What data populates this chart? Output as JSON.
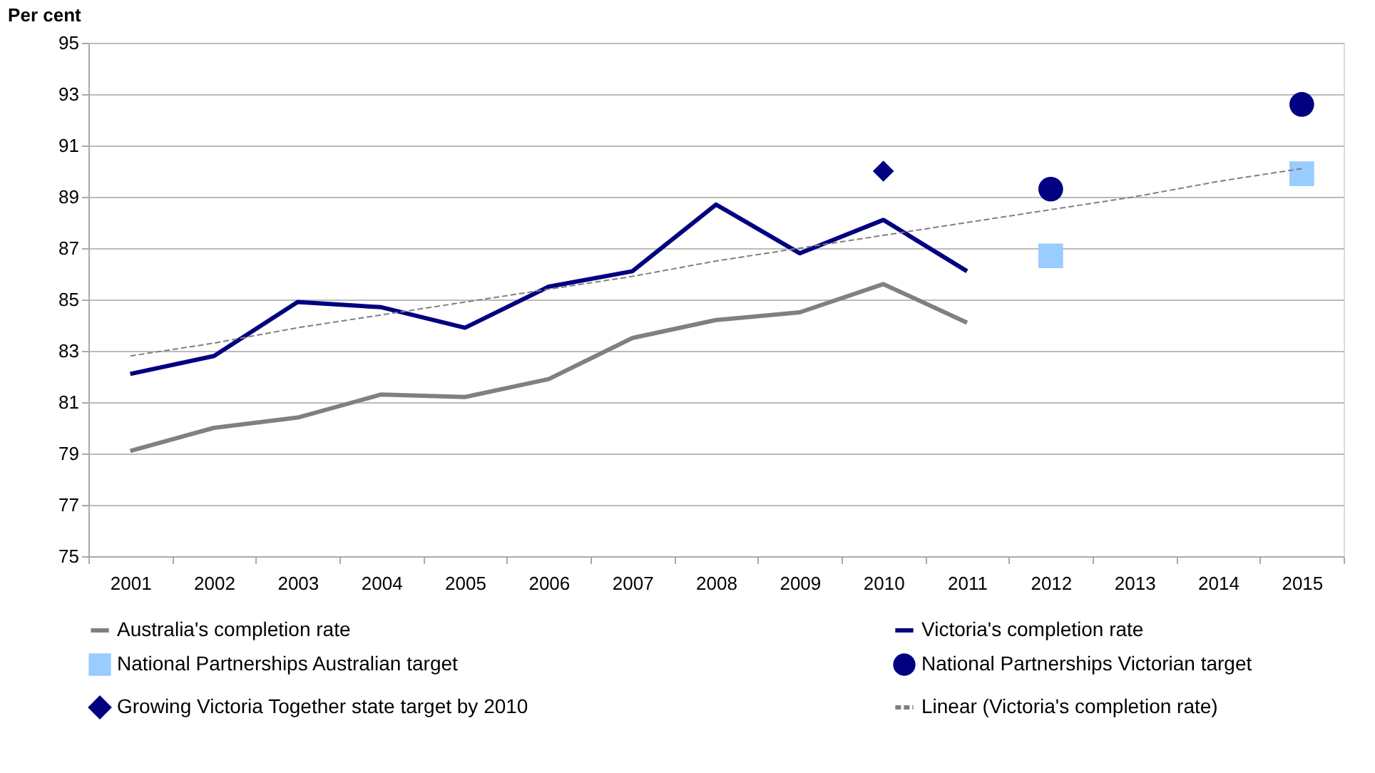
{
  "chart_data": {
    "type": "line",
    "ylabel": "Per cent",
    "categories": [
      "2001",
      "2002",
      "2003",
      "2004",
      "2005",
      "2006",
      "2007",
      "2008",
      "2009",
      "2010",
      "2011",
      "2012",
      "2013",
      "2014",
      "2015"
    ],
    "ylim": [
      75,
      95
    ],
    "yticks": [
      75,
      77,
      79,
      81,
      83,
      85,
      87,
      89,
      91,
      93,
      95
    ],
    "grid": "y",
    "legend": "bottom",
    "series": [
      {
        "name": "Australia's completion rate",
        "color": "#808080",
        "values": [
          79.1,
          80.0,
          80.4,
          81.3,
          81.2,
          81.9,
          83.5,
          84.2,
          84.5,
          85.6,
          84.1,
          null,
          null,
          null,
          null
        ]
      },
      {
        "name": "Victoria's completion rate",
        "color": "#000080",
        "values": [
          82.1,
          82.8,
          84.9,
          84.7,
          83.9,
          85.5,
          86.1,
          88.7,
          86.8,
          88.1,
          86.1,
          null,
          null,
          null,
          null
        ]
      },
      {
        "name": "National Partnerships Australian target",
        "type": "scatter",
        "marker": "square",
        "color": "#99ccff",
        "values": [
          null,
          null,
          null,
          null,
          null,
          null,
          null,
          null,
          null,
          null,
          null,
          86.7,
          null,
          null,
          89.9
        ]
      },
      {
        "name": "National Partnerships Victorian target",
        "type": "scatter",
        "marker": "circle",
        "color": "#000080",
        "values": [
          null,
          null,
          null,
          null,
          null,
          null,
          null,
          null,
          null,
          null,
          null,
          89.3,
          null,
          null,
          92.6
        ]
      },
      {
        "name": "Growing Victoria Together state target by 2010",
        "type": "scatter",
        "marker": "diamond",
        "color": "#000080",
        "values": [
          null,
          null,
          null,
          null,
          null,
          null,
          null,
          null,
          null,
          90.0,
          null,
          null,
          null,
          null,
          null
        ]
      },
      {
        "name": "Linear (Victoria's completion rate)",
        "line_style": "dashed",
        "color": "#808080",
        "values": [
          82.8,
          83.3,
          83.9,
          84.4,
          84.9,
          85.4,
          85.9,
          86.5,
          87.0,
          87.5,
          88.0,
          88.5,
          89.0,
          89.6,
          90.1
        ]
      }
    ]
  }
}
